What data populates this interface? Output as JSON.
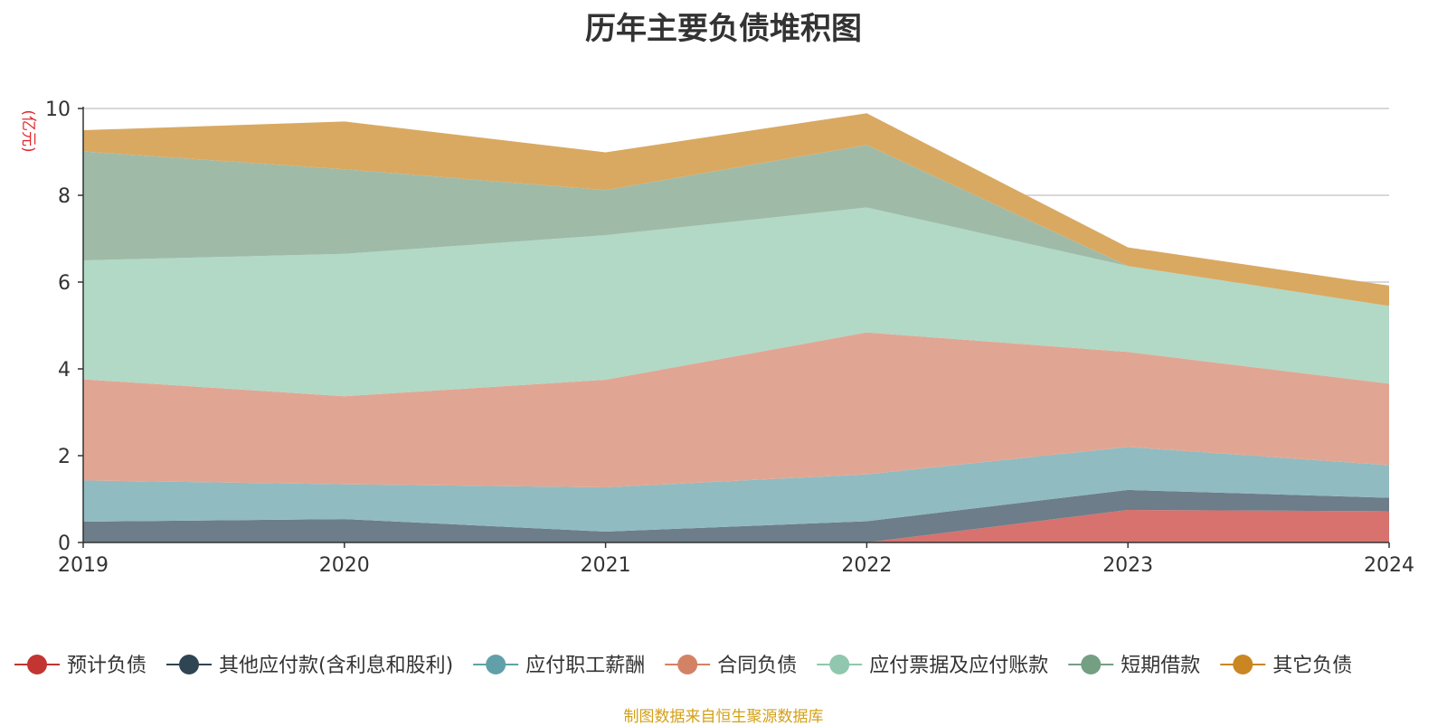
{
  "chart_data": {
    "type": "area",
    "stacked": true,
    "title": "历年主要负债堆积图",
    "ylabel": "(亿元)",
    "xlabel": "",
    "categories": [
      "2019",
      "2020",
      "2021",
      "2022",
      "2023",
      "2024"
    ],
    "ylim": [
      0,
      10
    ],
    "yticks": [
      0,
      2,
      4,
      6,
      8,
      10
    ],
    "grid": true,
    "legend_position": "bottom",
    "series": [
      {
        "name": "预计负债",
        "color": "#c23531",
        "fill": "#d7726f",
        "values": [
          0,
          0,
          0,
          0,
          0.75,
          0.72
        ]
      },
      {
        "name": "其他应付款(含利息和股利)",
        "color": "#2f4554",
        "fill": "#6d7d89",
        "values": [
          0.48,
          0.54,
          0.25,
          0.49,
          0.46,
          0.31
        ]
      },
      {
        "name": "应付职工薪酬",
        "color": "#61a0a8",
        "fill": "#90bbc1",
        "values": [
          0.95,
          0.8,
          1.02,
          1.08,
          0.99,
          0.75
        ]
      },
      {
        "name": "合同负债",
        "color": "#d48265",
        "fill": "#e1a693",
        "values": [
          2.33,
          2.03,
          2.48,
          3.27,
          2.19,
          1.88
        ]
      },
      {
        "name": "应付票据及应付账款",
        "color": "#91c7ae",
        "fill": "#b1d9c6",
        "values": [
          2.74,
          3.28,
          3.33,
          2.88,
          1.98,
          1.79
        ]
      },
      {
        "name": "短期借款",
        "color": "#749f83",
        "fill": "#9fbba8",
        "values": [
          2.51,
          1.95,
          1.04,
          1.44,
          0,
          0
        ]
      },
      {
        "name": "其它负债",
        "color": "#ca8622",
        "fill": "#d9a962",
        "values": [
          0.49,
          1.1,
          0.87,
          0.73,
          0.43,
          0.47
        ]
      }
    ]
  },
  "footer": {
    "source": "制图数据来自恒生聚源数据库",
    "source_color": "#d4a017"
  }
}
